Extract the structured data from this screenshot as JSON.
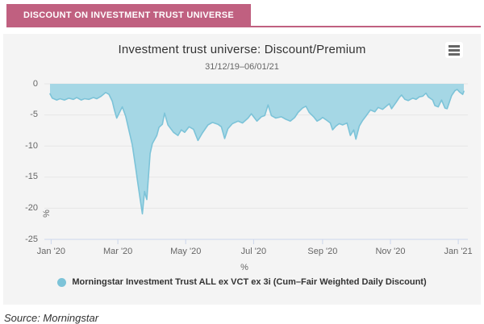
{
  "banner": {
    "label": "DISCOUNT ON INVESTMENT TRUST UNIVERSE",
    "background": "#c06080"
  },
  "chart": {
    "title": "Investment trust universe: Discount/Premium",
    "subtitle": "31/12/19–06/01/21",
    "background": "#f4f4f4",
    "menu_icon": "hamburger-icon",
    "grid_color": "#e6e6e6",
    "axis_line_color": "#ccd6eb",
    "tick_label_color": "#666666"
  },
  "legend": {
    "label": "Morningstar Investment Trust ALL ex VCT ex 3i (Cum–Fair Weighted Daily Discount)",
    "marker_color": "#7cc3d8"
  },
  "source": {
    "text": "Source: Morningstar"
  },
  "chart_data": {
    "type": "area",
    "title": "Investment trust universe: Discount/Premium",
    "subtitle": "31/12/19–06/01/21",
    "xlabel": "%",
    "ylabel": "%",
    "ylim": [
      -25,
      0
    ],
    "grid": true,
    "legend_position": "bottom",
    "y_tick_labels": [
      "0",
      "-5",
      "-10",
      "-15",
      "-20",
      "-25"
    ],
    "y_tick_values": [
      0,
      -5,
      -10,
      -15,
      -20,
      -25
    ],
    "x_tick_labels": [
      "Jan '20",
      "Mar '20",
      "May '20",
      "Jul '20",
      "Sep '20",
      "Nov '20",
      "Jan '21"
    ],
    "x_tick_day_offsets": [
      1,
      61,
      122,
      183,
      245,
      306,
      367
    ],
    "x_unit": "days since 2019-12-31",
    "x_range": [
      "31/12/19",
      "06/01/21"
    ],
    "x_range_days": 372,
    "series": [
      {
        "name": "Morningstar Investment Trust ALL ex VCT ex 3i (Cum–Fair Weighted Daily Discount)",
        "fill_color": "#a5d7e5",
        "line_color": "#7cc3d8",
        "points": [
          [
            0,
            -1.6
          ],
          [
            2,
            -2.3
          ],
          [
            6,
            -2.6
          ],
          [
            9,
            -2.4
          ],
          [
            13,
            -2.6
          ],
          [
            17,
            -2.3
          ],
          [
            21,
            -2.5
          ],
          [
            24,
            -2.2
          ],
          [
            28,
            -2.6
          ],
          [
            31,
            -2.4
          ],
          [
            35,
            -2.5
          ],
          [
            39,
            -2.2
          ],
          [
            42,
            -2.4
          ],
          [
            46,
            -2.0
          ],
          [
            50,
            -1.4
          ],
          [
            53,
            -1.7
          ],
          [
            56,
            -2.8
          ],
          [
            58,
            -4.3
          ],
          [
            60,
            -5.5
          ],
          [
            63,
            -4.4
          ],
          [
            65,
            -3.7
          ],
          [
            68,
            -5.2
          ],
          [
            71,
            -7.5
          ],
          [
            74,
            -9.8
          ],
          [
            77,
            -13.5
          ],
          [
            79,
            -16.0
          ],
          [
            81,
            -18.5
          ],
          [
            83,
            -20.9
          ],
          [
            85,
            -17.3
          ],
          [
            87,
            -18.6
          ],
          [
            90,
            -11.2
          ],
          [
            92,
            -9.6
          ],
          [
            96,
            -8.3
          ],
          [
            98,
            -7.0
          ],
          [
            101,
            -6.5
          ],
          [
            103,
            -4.7
          ],
          [
            106,
            -6.6
          ],
          [
            111,
            -7.8
          ],
          [
            115,
            -8.3
          ],
          [
            118,
            -7.4
          ],
          [
            121,
            -7.8
          ],
          [
            125,
            -6.9
          ],
          [
            129,
            -7.3
          ],
          [
            133,
            -9.1
          ],
          [
            137,
            -7.9
          ],
          [
            142,
            -6.6
          ],
          [
            146,
            -6.2
          ],
          [
            151,
            -6.5
          ],
          [
            154,
            -6.9
          ],
          [
            157,
            -8.8
          ],
          [
            160,
            -7.2
          ],
          [
            164,
            -6.4
          ],
          [
            169,
            -6.0
          ],
          [
            173,
            -6.3
          ],
          [
            178,
            -5.5
          ],
          [
            181,
            -4.8
          ],
          [
            183,
            -5.3
          ],
          [
            186,
            -6.0
          ],
          [
            190,
            -5.3
          ],
          [
            193,
            -5.1
          ],
          [
            196,
            -3.4
          ],
          [
            199,
            -5.1
          ],
          [
            203,
            -5.5
          ],
          [
            208,
            -5.3
          ],
          [
            212,
            -5.7
          ],
          [
            216,
            -6.0
          ],
          [
            220,
            -5.4
          ],
          [
            223,
            -4.6
          ],
          [
            227,
            -3.9
          ],
          [
            230,
            -3.6
          ],
          [
            233,
            -4.6
          ],
          [
            237,
            -5.3
          ],
          [
            240,
            -6.0
          ],
          [
            243,
            -5.7
          ],
          [
            245,
            -5.4
          ],
          [
            249,
            -5.9
          ],
          [
            252,
            -6.3
          ],
          [
            254,
            -7.4
          ],
          [
            257,
            -6.8
          ],
          [
            260,
            -6.4
          ],
          [
            263,
            -6.6
          ],
          [
            267,
            -6.3
          ],
          [
            270,
            -8.3
          ],
          [
            273,
            -7.4
          ],
          [
            275,
            -8.9
          ],
          [
            278,
            -6.8
          ],
          [
            281,
            -5.9
          ],
          [
            284,
            -5.2
          ],
          [
            288,
            -4.2
          ],
          [
            292,
            -4.5
          ],
          [
            295,
            -3.8
          ],
          [
            299,
            -4.1
          ],
          [
            303,
            -3.5
          ],
          [
            305,
            -3.2
          ],
          [
            307,
            -4.0
          ],
          [
            311,
            -3.0
          ],
          [
            314,
            -2.2
          ],
          [
            316,
            -1.8
          ],
          [
            319,
            -2.5
          ],
          [
            322,
            -2.7
          ],
          [
            326,
            -2.3
          ],
          [
            329,
            -2.5
          ],
          [
            332,
            -2.1
          ],
          [
            335,
            -2.0
          ],
          [
            338,
            -1.5
          ],
          [
            340,
            -2.1
          ],
          [
            344,
            -2.6
          ],
          [
            346,
            -3.5
          ],
          [
            349,
            -3.7
          ],
          [
            352,
            -2.6
          ],
          [
            355,
            -3.9
          ],
          [
            357,
            -4.0
          ],
          [
            361,
            -1.9
          ],
          [
            364,
            -1.1
          ],
          [
            366,
            -0.9
          ],
          [
            368,
            -1.3
          ],
          [
            371,
            -1.7
          ],
          [
            372,
            -1.2
          ]
        ]
      }
    ]
  }
}
